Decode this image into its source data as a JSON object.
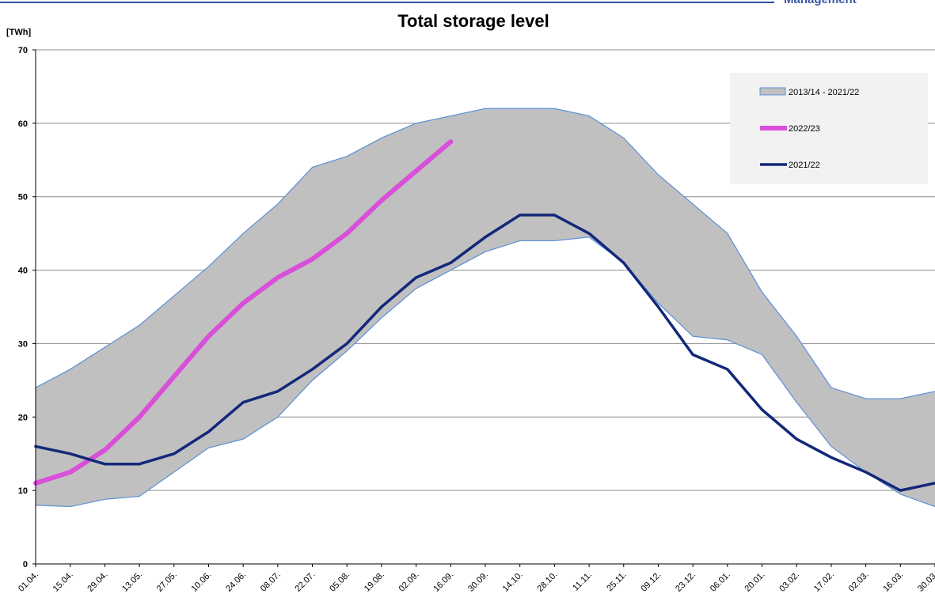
{
  "header": {
    "text": "Management"
  },
  "chart_data": {
    "type": "line",
    "title": "Total storage level",
    "y_label": "[TWh]",
    "categories": [
      "01.04.",
      "15.04.",
      "29.04.",
      "13.05.",
      "27.05.",
      "10.06.",
      "24.06.",
      "08.07.",
      "22.07.",
      "05.08.",
      "19.08.",
      "02.09.",
      "16.09.",
      "30.09.",
      "14.10.",
      "28.10.",
      "11.11.",
      "25.11.",
      "09.12.",
      "23.12.",
      "06.01.",
      "20.01.",
      "03.02.",
      "17.02.",
      "02.03.",
      "16.03.",
      "30.03."
    ],
    "series": [
      {
        "name": "2013/14 - 2021/22",
        "color": "#c0c0c0",
        "outline": "#5b8fd6",
        "values": [
          24,
          26.5,
          29.5,
          32.5,
          36.5,
          40.5,
          45,
          49,
          54,
          55.5,
          58,
          60,
          61,
          62,
          62,
          62,
          61,
          58,
          53,
          49,
          45,
          37,
          31,
          24,
          22.5,
          22.5,
          23.5
        ],
        "low": [
          8,
          7.8,
          8.8,
          9.2,
          12.5,
          15.8,
          17,
          20,
          25,
          29,
          33.5,
          37.5,
          40,
          42.5,
          44,
          44,
          44.5,
          41,
          35.5,
          31,
          30.5,
          28.5,
          22,
          16,
          12.5,
          9.5,
          7.8
        ]
      },
      {
        "name": "2022/23",
        "color": "#d94fd9",
        "values": [
          11,
          12.5,
          15.5,
          20,
          25.5,
          31,
          35.5,
          39,
          41.5,
          45,
          49.5,
          53.5,
          57.5,
          null,
          null,
          null,
          null,
          null,
          null,
          null,
          null,
          null,
          null,
          null,
          null,
          null,
          null
        ]
      },
      {
        "name": "2021/22",
        "color": "#14287a",
        "values": [
          16,
          15,
          13.6,
          13.6,
          15,
          18,
          22,
          23.5,
          26.5,
          30,
          35,
          39,
          41,
          44.5,
          47.5,
          47.5,
          45,
          41,
          35,
          28.5,
          26.5,
          21,
          17,
          14.5,
          12.5,
          10,
          11
        ]
      }
    ],
    "ylim": [
      0,
      70
    ],
    "yticks": [
      0,
      10,
      20,
      30,
      40,
      50,
      60,
      70
    ],
    "grid": true,
    "legend": "upper right"
  }
}
